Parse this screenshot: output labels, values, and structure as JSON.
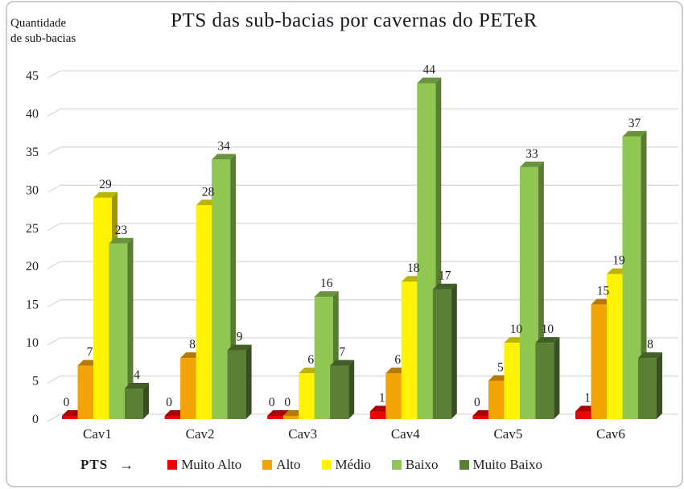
{
  "page": {
    "background": "#ffffff",
    "border_color": "#cccccc",
    "text_color": "#1f1f1f"
  },
  "header": {
    "y_axis_title": [
      "Quantidade",
      "de sub-bacias"
    ]
  },
  "legend": {
    "title": "PTS",
    "arrow": "→",
    "position": "bottom"
  },
  "chart_data": {
    "type": "bar",
    "variant": "3d-clustered-column",
    "title": "PTS das sub-bacias por cavernas do PETeR",
    "xlabel": "",
    "ylabel": "Quantidade de sub-bacias",
    "categories": [
      "Cav1",
      "Cav2",
      "Cav3",
      "Cav4",
      "Cav5",
      "Cav6"
    ],
    "series": [
      {
        "name": "Muito Alto",
        "color": "#e90505",
        "values": [
          0,
          0,
          0,
          1,
          0,
          1
        ]
      },
      {
        "name": "Alto",
        "color": "#f4a306",
        "values": [
          7,
          8,
          0,
          6,
          5,
          15
        ]
      },
      {
        "name": "Médio",
        "color": "#fff205",
        "values": [
          29,
          28,
          6,
          18,
          10,
          19
        ]
      },
      {
        "name": "Baixo",
        "color": "#90c753",
        "values": [
          23,
          34,
          16,
          44,
          33,
          37
        ]
      },
      {
        "name": "Muito Baixo",
        "color": "#5b7f35",
        "values": [
          4,
          9,
          7,
          17,
          10,
          8
        ]
      }
    ],
    "ylim": [
      0,
      45
    ],
    "y_ticks": [
      0,
      5,
      10,
      15,
      20,
      25,
      30,
      35,
      40,
      45
    ],
    "grid": true,
    "grid_color": "#d9d9d9",
    "data_labels": true,
    "legend_position": "bottom"
  }
}
